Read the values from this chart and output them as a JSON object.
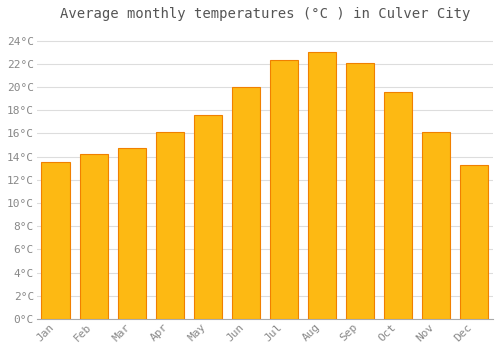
{
  "title": "Average monthly temperatures (°C ) in Culver City",
  "months": [
    "Jan",
    "Feb",
    "Mar",
    "Apr",
    "May",
    "Jun",
    "Jul",
    "Aug",
    "Sep",
    "Oct",
    "Nov",
    "Dec"
  ],
  "values": [
    13.5,
    14.2,
    14.7,
    16.1,
    17.6,
    20.0,
    22.3,
    23.0,
    22.1,
    19.6,
    16.1,
    13.3
  ],
  "bar_color_face": "#FDB913",
  "bar_color_edge": "#F08000",
  "background_color": "#FFFFFF",
  "plot_bg_color": "#FFFFFF",
  "grid_color": "#DDDDDD",
  "title_fontsize": 10,
  "tick_fontsize": 8,
  "title_color": "#555555",
  "tick_color": "#888888",
  "ylim": [
    0,
    25
  ],
  "ytick_step": 2,
  "bar_width": 0.75
}
